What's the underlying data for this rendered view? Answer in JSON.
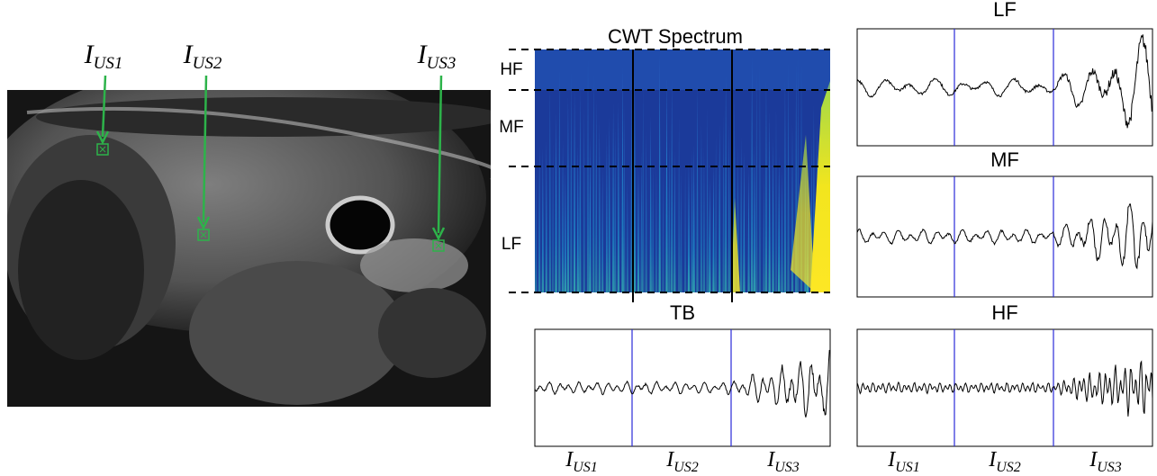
{
  "ultrasound": {
    "labels": [
      {
        "symbol": "I",
        "subscript": "US1"
      },
      {
        "symbol": "I",
        "subscript": "US2"
      },
      {
        "symbol": "I",
        "subscript": "US3"
      }
    ]
  },
  "spectrum": {
    "title": "CWT Spectrum",
    "bands": [
      "HF",
      "MF",
      "LF"
    ]
  },
  "signals": [
    {
      "title": "TB",
      "x_labels": [
        {
          "symbol": "I",
          "subscript": "US1"
        },
        {
          "symbol": "I",
          "subscript": "US2"
        },
        {
          "symbol": "I",
          "subscript": "US3"
        }
      ]
    },
    {
      "title": "LF"
    },
    {
      "title": "MF"
    },
    {
      "title": "HF",
      "x_labels": [
        {
          "symbol": "I",
          "subscript": "US1"
        },
        {
          "symbol": "I",
          "subscript": "US2"
        },
        {
          "symbol": "I",
          "subscript": "US3"
        }
      ]
    }
  ]
}
